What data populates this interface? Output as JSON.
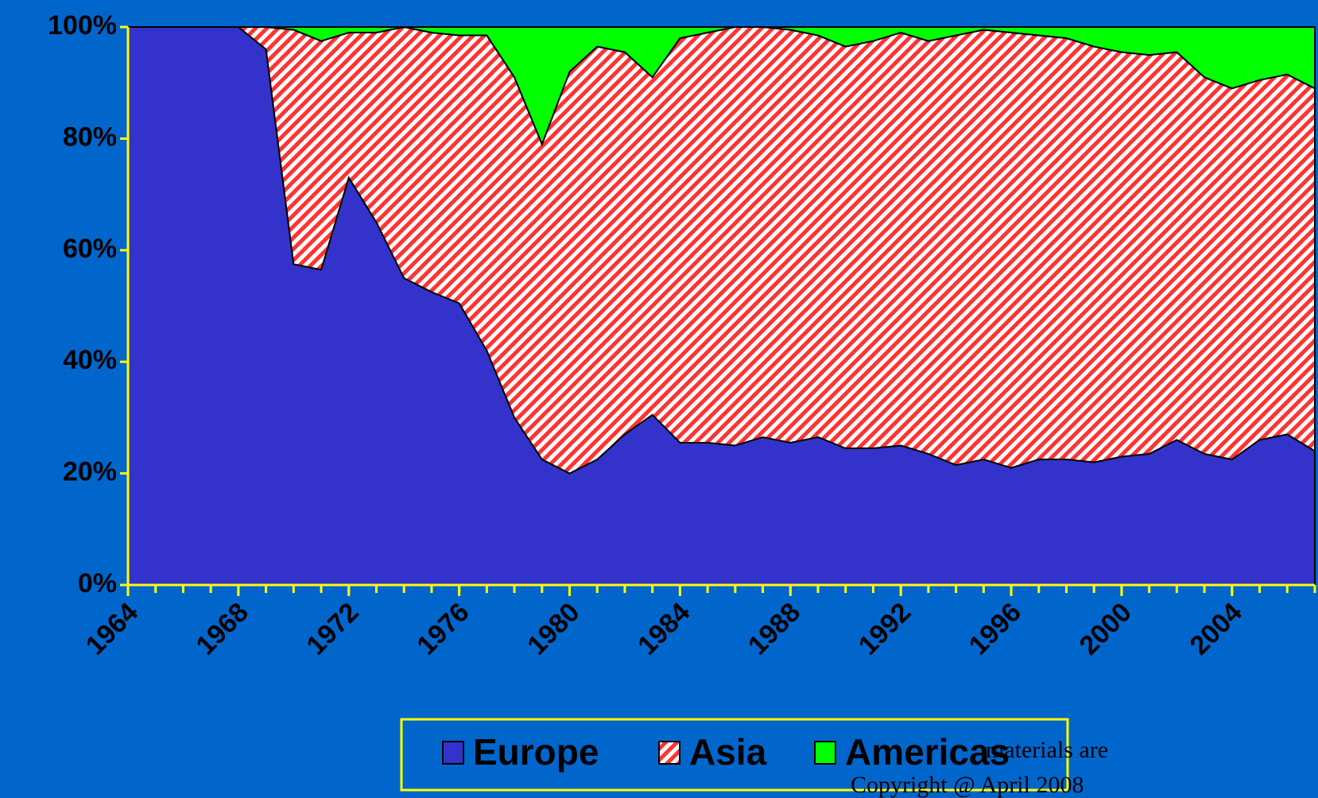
{
  "chart_data": {
    "type": "stacked_area",
    "x": [
      1964,
      1965,
      1966,
      1967,
      1968,
      1969,
      1970,
      1971,
      1972,
      1973,
      1974,
      1975,
      1976,
      1977,
      1978,
      1979,
      1980,
      1981,
      1982,
      1983,
      1984,
      1985,
      1986,
      1987,
      1988,
      1989,
      1990,
      1991,
      1992,
      1993,
      1994,
      1995,
      1996,
      1997,
      1998,
      1999,
      2000,
      2001,
      2002,
      2003,
      2004,
      2005,
      2006,
      2007
    ],
    "series": [
      {
        "name": "Europe",
        "color": "#3333cc",
        "values": [
          100,
          100,
          100,
          100,
          100,
          96,
          57.5,
          56.5,
          73,
          65,
          55,
          52.5,
          50.5,
          42,
          30,
          22.5,
          20,
          22.5,
          27,
          30.5,
          25.5,
          25.5,
          25,
          26.5,
          25.5,
          26.5,
          24.5,
          24.5,
          25,
          23.5,
          21.5,
          22.5,
          21,
          22.5,
          22.5,
          22,
          23,
          23.5,
          26,
          23.5,
          22.5,
          26,
          27,
          24
        ]
      },
      {
        "name": "Asia",
        "color": "#ff3333",
        "hatch": true,
        "values": [
          0,
          0,
          0,
          0,
          0,
          4,
          42,
          41,
          26,
          34,
          45,
          46.5,
          48,
          56.5,
          61,
          56.5,
          72,
          74,
          68.5,
          60.5,
          72.5,
          73.5,
          75,
          73.5,
          74,
          72,
          72,
          73,
          74,
          74,
          77,
          77,
          78,
          76,
          75.5,
          74.5,
          72.5,
          71.5,
          69.5,
          67.5,
          66.5,
          64.5,
          64.5,
          65
        ]
      },
      {
        "name": "Americas",
        "color": "#00ff00",
        "values": [
          0,
          0,
          0,
          0,
          0,
          0,
          0.5,
          2.5,
          1,
          1,
          0,
          1,
          1.5,
          1.5,
          9,
          21,
          8,
          3.5,
          4.5,
          9,
          2,
          1,
          0,
          0,
          0.5,
          1.5,
          3.5,
          2.5,
          1,
          2.5,
          1.5,
          0.5,
          1,
          1.5,
          2,
          3.5,
          4.5,
          5,
          4.5,
          9,
          11,
          9.5,
          8.5,
          11
        ]
      }
    ],
    "xlim": [
      1964,
      2007
    ],
    "xticks": [
      1964,
      1968,
      1972,
      1976,
      1980,
      1984,
      1988,
      1992,
      1996,
      2000,
      2004
    ],
    "ylim": [
      0,
      100
    ],
    "yticks": [
      {
        "value": 0,
        "label": "0%"
      },
      {
        "value": 20,
        "label": "20%"
      },
      {
        "value": 40,
        "label": "40%"
      },
      {
        "value": 60,
        "label": "60%"
      },
      {
        "value": 80,
        "label": "80%"
      },
      {
        "value": 100,
        "label": "100%"
      }
    ],
    "axis_color": "#ffff00",
    "legend": "bottom",
    "annotations": [
      "materials are",
      "Copyright @ April 2008"
    ]
  }
}
